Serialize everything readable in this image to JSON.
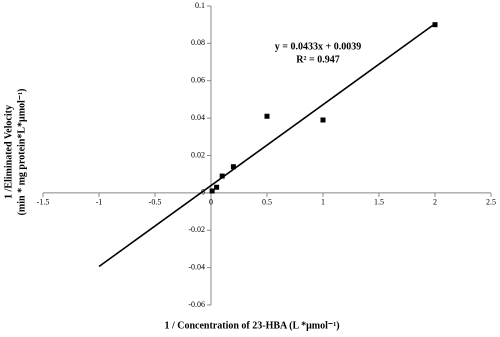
{
  "chart_data": {
    "type": "scatter",
    "x_label": "1 / Concentration of 23-HBA (L *μmol⁻¹)",
    "y_label": [
      "1 /Eliminated Velocity",
      "(min * mg protein*L*μmol⁻¹)"
    ],
    "x": [
      0.01,
      0.05,
      0.1,
      0.2,
      0.5,
      1,
      2
    ],
    "values": [
      0.001,
      0.003,
      0.009,
      0.014,
      0.041,
      0.039,
      0.09
    ],
    "color": "#000000",
    "trendline": {
      "slope": 0.0433,
      "intercept": 0.0039,
      "x": [
        -1,
        2
      ],
      "equation": "y = 0.0433x + 0.0039",
      "r2": "R² = 0.947"
    },
    "xlim": [
      -1.5,
      2.5
    ],
    "xticks": [
      -1.5,
      -1,
      -0.5,
      0,
      0.5,
      1,
      1.5,
      2,
      2.5
    ],
    "ylim": [
      -0.06,
      0.1
    ],
    "yticks": [
      -0.06,
      -0.04,
      -0.02,
      0,
      0.02,
      0.04,
      0.06,
      0.08,
      0.1
    ],
    "grid": false
  }
}
